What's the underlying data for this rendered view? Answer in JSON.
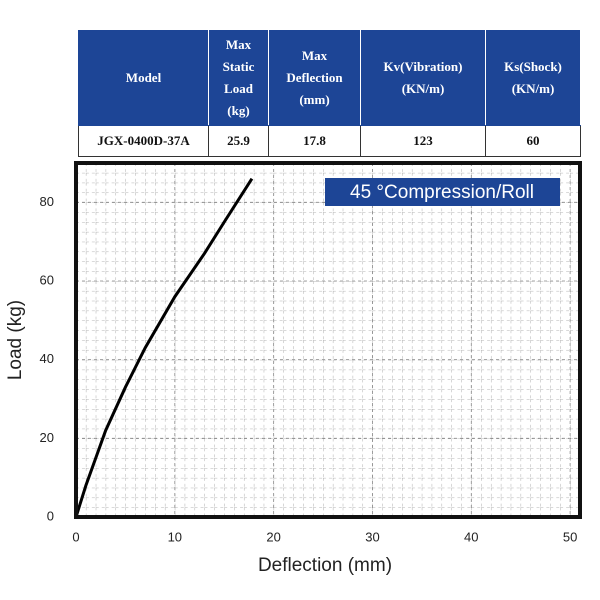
{
  "table": {
    "headers": [
      "Model",
      "Max Static Load (kg)",
      "Max Deflection (mm)",
      "Kv(Vibration) (KN/m)",
      "Ks(Shock) (KN/m)"
    ],
    "rows": [
      [
        "JGX-0400D-37A",
        25.9,
        17.8,
        123,
        60
      ]
    ]
  },
  "chart_data": {
    "type": "line",
    "annotation": "45 °Compression/Roll",
    "xlabel": "Deflection (mm)",
    "ylabel": "Load (kg)",
    "x": [
      0,
      1,
      2,
      3,
      5,
      7,
      10,
      13,
      15,
      17.8
    ],
    "series": [
      {
        "color": "#000000",
        "values": [
          0,
          8,
          15,
          22,
          33,
          43,
          56,
          67,
          75,
          86
        ]
      }
    ],
    "xlim": [
      0,
      51
    ],
    "ylim": [
      0,
      90
    ],
    "xticks": [
      0,
      10,
      20,
      30,
      40,
      50
    ],
    "yticks": [
      0,
      20,
      40,
      60,
      80
    ],
    "grid": true
  }
}
